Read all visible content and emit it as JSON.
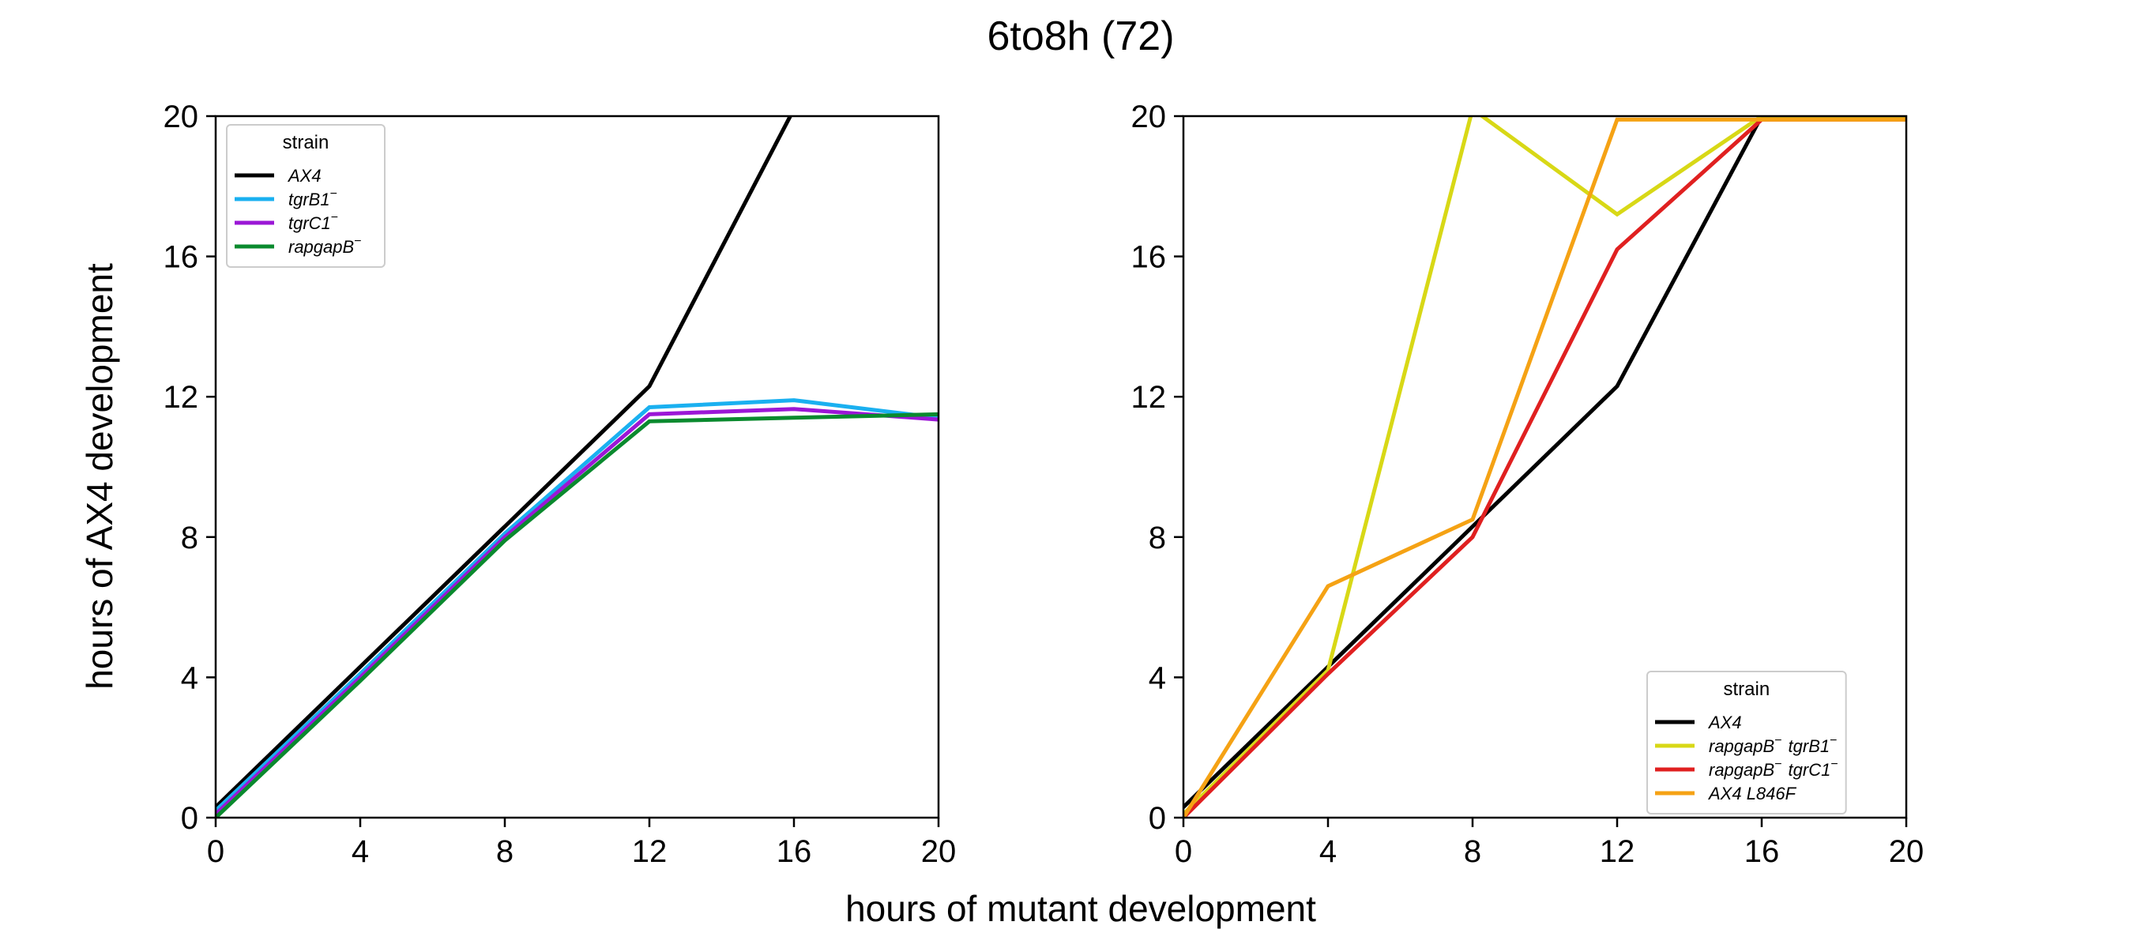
{
  "figure": {
    "title": "6to8h (72)",
    "xlabel": "hours of mutant development",
    "ylabel": "hours of AX4 development"
  },
  "chart_data": [
    {
      "type": "line",
      "xlim": [
        0,
        20
      ],
      "ylim": [
        0,
        20
      ],
      "xticks": [
        0,
        4,
        8,
        12,
        16,
        20
      ],
      "yticks": [
        0,
        4,
        8,
        12,
        16,
        20
      ],
      "grid": false,
      "legend": {
        "title": "strain",
        "placement": "top-left"
      },
      "series": [
        {
          "name": "AX4",
          "sup": "",
          "color": "#000000",
          "x": [
            0,
            4,
            8,
            12,
            16
          ],
          "y": [
            0.3,
            4.3,
            8.3,
            12.3,
            20.2
          ]
        },
        {
          "name": "tgrB1",
          "sup": "−",
          "color": "#1ab0f0",
          "x": [
            0,
            4,
            8,
            12,
            16,
            20
          ],
          "y": [
            0.2,
            4.1,
            8.1,
            11.7,
            11.9,
            11.4
          ]
        },
        {
          "name": "tgrC1",
          "sup": "−",
          "color": "#9b17d6",
          "x": [
            0,
            4,
            8,
            12,
            16,
            20
          ],
          "y": [
            0.1,
            4.0,
            8.0,
            11.5,
            11.65,
            11.35
          ]
        },
        {
          "name": "rapgapB",
          "sup": "−",
          "color": "#0a8a2e",
          "x": [
            0,
            4,
            8,
            12,
            16,
            20
          ],
          "y": [
            0.0,
            3.9,
            7.9,
            11.3,
            11.4,
            11.5
          ]
        }
      ]
    },
    {
      "type": "line",
      "xlim": [
        0,
        20
      ],
      "ylim": [
        0,
        20
      ],
      "xticks": [
        0,
        4,
        8,
        12,
        16,
        20
      ],
      "yticks": [
        0,
        4,
        8,
        12,
        16,
        20
      ],
      "grid": false,
      "legend": {
        "title": "strain",
        "placement": "bottom-right"
      },
      "series": [
        {
          "name": "AX4",
          "sup": "",
          "color": "#000000",
          "x": [
            0,
            4,
            8,
            12,
            16,
            20
          ],
          "y": [
            0.3,
            4.3,
            8.3,
            12.3,
            20.0,
            20.0
          ]
        },
        {
          "name": "rapgapB",
          "sup": "−",
          "name2": "tgrB1",
          "sup2": "−",
          "color": "#d8d816",
          "x": [
            0,
            4,
            8,
            12,
            16,
            20
          ],
          "y": [
            0.1,
            4.2,
            20.2,
            17.2,
            20.0,
            20.0
          ]
        },
        {
          "name": "rapgapB",
          "sup": "−",
          "name2": "tgrC1",
          "sup2": "−",
          "color": "#e02020",
          "x": [
            0,
            4,
            8,
            12,
            16,
            20
          ],
          "y": [
            0.0,
            4.1,
            8.0,
            16.2,
            19.9,
            19.9
          ]
        },
        {
          "name": "AX4 L846F",
          "sup": "",
          "color": "#f5a214",
          "x": [
            0,
            4,
            8,
            12,
            16,
            20
          ],
          "y": [
            0.0,
            6.6,
            8.5,
            19.9,
            19.9,
            19.9
          ]
        }
      ]
    }
  ]
}
